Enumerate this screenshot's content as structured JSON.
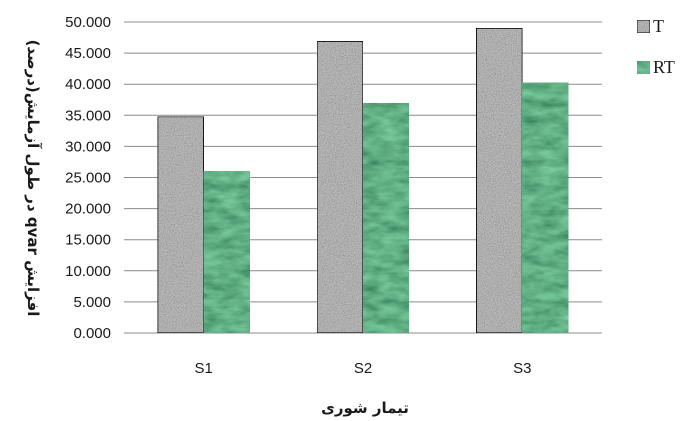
{
  "chart_data": {
    "type": "bar",
    "categories": [
      "S1",
      "S2",
      "S3"
    ],
    "series": [
      {
        "name": "T",
        "values": [
          34.8,
          46.9,
          49.0
        ],
        "color": "#c6c6c6"
      },
      {
        "name": "RT",
        "values": [
          26.0,
          36.9,
          40.2
        ],
        "color": "#1e5a30"
      }
    ],
    "ylim": [
      0,
      50
    ],
    "yticks": [
      "0.000",
      "5.000",
      "10.000",
      "15.000",
      "20.000",
      "25.000",
      "30.000",
      "35.000",
      "40.000",
      "45.000",
      "50.000"
    ],
    "xlabel": "تیمار شوری",
    "ylabel": "افزایش qvar در طول آزمایش(درصد)",
    "grid": true,
    "legend_position": "right"
  }
}
